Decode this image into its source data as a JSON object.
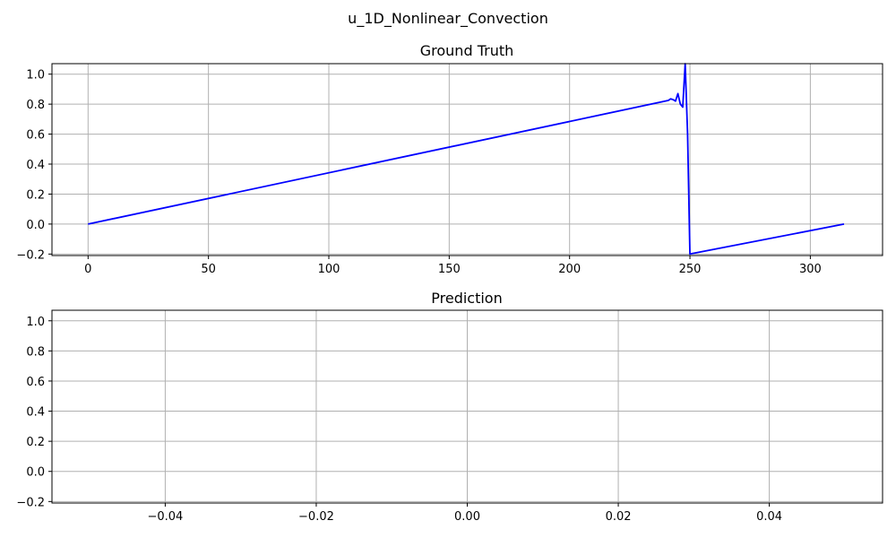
{
  "figure_title": "u_1D_Nonlinear_Convection",
  "chart_data": [
    {
      "type": "line",
      "title": "Ground Truth",
      "xlabel": "",
      "ylabel": "",
      "xlim": [
        -15,
        330
      ],
      "ylim": [
        -0.21,
        1.07
      ],
      "xticks": [
        0,
        50,
        100,
        150,
        200,
        250,
        300
      ],
      "xtick_labels": [
        "0",
        "50",
        "100",
        "150",
        "200",
        "250",
        "300"
      ],
      "yticks": [
        -0.2,
        0.0,
        0.2,
        0.4,
        0.6,
        0.8,
        1.0
      ],
      "ytick_labels": [
        "−0.2",
        "0.0",
        "0.2",
        "0.4",
        "0.6",
        "0.8",
        "1.0"
      ],
      "grid": true,
      "series": [
        {
          "color": "#0000ff",
          "x": [
            0,
            241,
            242,
            243,
            244,
            245,
            246,
            247,
            248,
            249,
            249.5,
            250,
            314
          ],
          "y": [
            0.0,
            0.825,
            0.835,
            0.83,
            0.82,
            0.87,
            0.8,
            0.78,
            1.07,
            0.6,
            0.2,
            -0.2,
            0.0
          ]
        }
      ]
    },
    {
      "type": "line",
      "title": "Prediction",
      "xlabel": "",
      "ylabel": "",
      "xlim": [
        -0.055,
        0.055
      ],
      "ylim": [
        -0.21,
        1.07
      ],
      "xticks": [
        -0.04,
        -0.02,
        0.0,
        0.02,
        0.04
      ],
      "xtick_labels": [
        "−0.04",
        "−0.02",
        "0.00",
        "0.02",
        "0.04"
      ],
      "yticks": [
        -0.2,
        0.0,
        0.2,
        0.4,
        0.6,
        0.8,
        1.0
      ],
      "ytick_labels": [
        "−0.2",
        "0.0",
        "0.2",
        "0.4",
        "0.6",
        "0.8",
        "1.0"
      ],
      "grid": true,
      "series": []
    }
  ]
}
